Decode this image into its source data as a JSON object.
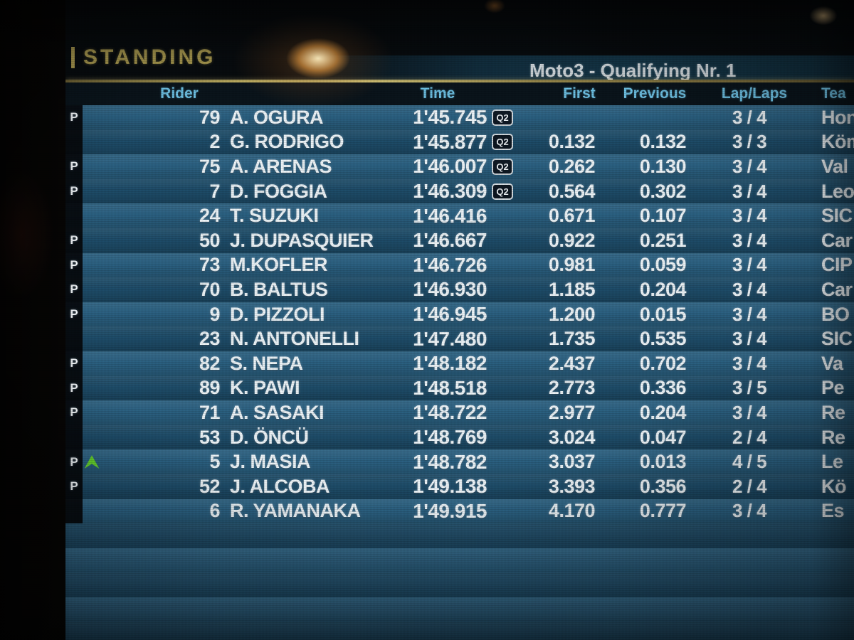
{
  "screen": {
    "page_label": "STANDING",
    "session_title": "Moto3 - Qualifying Nr. 1",
    "columns": {
      "rider": "Rider",
      "time": "Time",
      "first": "First",
      "previous": "Previous",
      "laps": "Lap/Laps",
      "team": "Tea"
    },
    "q2_badge_label": "Q2",
    "colors": {
      "header_blue": "#6fc3e6",
      "standing_olive": "#a3944d",
      "row_light": "#2b6182",
      "row_dark": "#1e4d6a",
      "arrow_green": "#66d22e",
      "text_white": "#eef5f9"
    },
    "rows": [
      {
        "pit": "P",
        "up": false,
        "num": "79",
        "name": "A. OGURA",
        "time": "1'45.745",
        "q2": true,
        "first": "",
        "previous": "",
        "laps": "3 / 4",
        "team": "Hon"
      },
      {
        "pit": "",
        "up": false,
        "num": "2",
        "name": "G. RODRIGO",
        "time": "1'45.877",
        "q2": true,
        "first": "0.132",
        "previous": "0.132",
        "laps": "3 / 3",
        "team": "Köm"
      },
      {
        "pit": "P",
        "up": false,
        "num": "75",
        "name": "A. ARENAS",
        "time": "1'46.007",
        "q2": true,
        "first": "0.262",
        "previous": "0.130",
        "laps": "3 / 4",
        "team": "Val"
      },
      {
        "pit": "P",
        "up": false,
        "num": "7",
        "name": "D. FOGGIA",
        "time": "1'46.309",
        "q2": true,
        "first": "0.564",
        "previous": "0.302",
        "laps": "3 / 4",
        "team": "Leo"
      },
      {
        "pit": "",
        "up": false,
        "num": "24",
        "name": "T. SUZUKI",
        "time": "1'46.416",
        "q2": false,
        "first": "0.671",
        "previous": "0.107",
        "laps": "3 / 4",
        "team": "SIC"
      },
      {
        "pit": "P",
        "up": false,
        "num": "50",
        "name": "J. DUPASQUIER",
        "time": "1'46.667",
        "q2": false,
        "first": "0.922",
        "previous": "0.251",
        "laps": "3 / 4",
        "team": "Car"
      },
      {
        "pit": "P",
        "up": false,
        "num": "73",
        "name": "M.KOFLER",
        "time": "1'46.726",
        "q2": false,
        "first": "0.981",
        "previous": "0.059",
        "laps": "3 / 4",
        "team": "CIP"
      },
      {
        "pit": "P",
        "up": false,
        "num": "70",
        "name": "B. BALTUS",
        "time": "1'46.930",
        "q2": false,
        "first": "1.185",
        "previous": "0.204",
        "laps": "3 / 4",
        "team": "Car"
      },
      {
        "pit": "P",
        "up": false,
        "num": "9",
        "name": "D. PIZZOLI",
        "time": "1'46.945",
        "q2": false,
        "first": "1.200",
        "previous": "0.015",
        "laps": "3 / 4",
        "team": "BO"
      },
      {
        "pit": "",
        "up": false,
        "num": "23",
        "name": "N. ANTONELLI",
        "time": "1'47.480",
        "q2": false,
        "first": "1.735",
        "previous": "0.535",
        "laps": "3 / 4",
        "team": "SIC"
      },
      {
        "pit": "P",
        "up": false,
        "num": "82",
        "name": "S. NEPA",
        "time": "1'48.182",
        "q2": false,
        "first": "2.437",
        "previous": "0.702",
        "laps": "3 / 4",
        "team": "Va"
      },
      {
        "pit": "P",
        "up": false,
        "num": "89",
        "name": "K. PAWI",
        "time": "1'48.518",
        "q2": false,
        "first": "2.773",
        "previous": "0.336",
        "laps": "3 / 5",
        "team": "Pe"
      },
      {
        "pit": "P",
        "up": false,
        "num": "71",
        "name": "A. SASAKI",
        "time": "1'48.722",
        "q2": false,
        "first": "2.977",
        "previous": "0.204",
        "laps": "3 / 4",
        "team": "Re"
      },
      {
        "pit": "",
        "up": false,
        "num": "53",
        "name": "D. ÖNCÜ",
        "time": "1'48.769",
        "q2": false,
        "first": "3.024",
        "previous": "0.047",
        "laps": "2 / 4",
        "team": "Re"
      },
      {
        "pit": "P",
        "up": true,
        "num": "5",
        "name": "J. MASIA",
        "time": "1'48.782",
        "q2": false,
        "first": "3.037",
        "previous": "0.013",
        "laps": "4 / 5",
        "team": "Le"
      },
      {
        "pit": "P",
        "up": false,
        "num": "52",
        "name": "J. ALCOBA",
        "time": "1'49.138",
        "q2": false,
        "first": "3.393",
        "previous": "0.356",
        "laps": "2 / 4",
        "team": "Kö"
      },
      {
        "pit": "",
        "up": false,
        "num": "6",
        "name": "R. YAMANAKA",
        "time": "1'49.915",
        "q2": false,
        "first": "4.170",
        "previous": "0.777",
        "laps": "3 / 4",
        "team": "Es"
      }
    ],
    "empty_row_count": 5
  }
}
